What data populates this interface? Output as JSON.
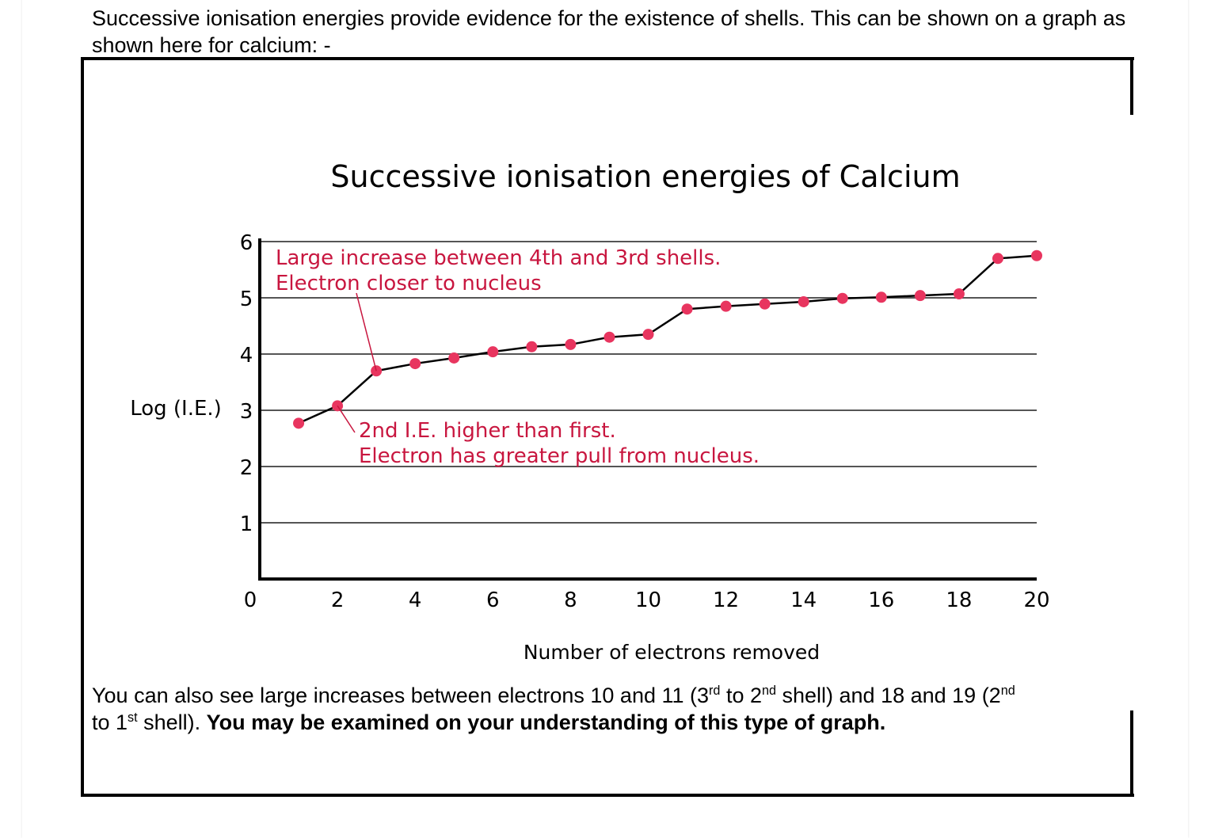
{
  "intro_text": "Successive ionisation energies provide evidence for the existence of shells. This can be shown on a graph as shown here for calcium: -",
  "outro": {
    "part1": "You can also see large increases between electrons 10 and 11 (3",
    "sup1": "rd",
    "part2": " to 2",
    "sup2": "nd",
    "part3": " shell) and 18 and 19 (2",
    "sup3": "nd",
    "part4": " to 1",
    "sup4": "st",
    "part5": " shell).  ",
    "bold": "You may be examined on your understanding of this type of graph."
  },
  "chart_data": {
    "type": "line",
    "title": "Successive ionisation energies of Calcium",
    "xlabel": "Number of electrons removed",
    "ylabel": "Log (I.E.)",
    "xlim": [
      0,
      20
    ],
    "ylim": [
      0,
      6
    ],
    "x_ticks": [
      "0",
      "2",
      "4",
      "6",
      "8",
      "10",
      "12",
      "14",
      "16",
      "18",
      "20"
    ],
    "y_ticks": [
      "1",
      "2",
      "3",
      "4",
      "5",
      "6"
    ],
    "grid": "horizontal",
    "x": [
      1,
      2,
      3,
      4,
      5,
      6,
      7,
      8,
      9,
      10,
      11,
      12,
      13,
      14,
      15,
      16,
      17,
      18,
      19,
      20
    ],
    "values": [
      2.77,
      3.08,
      3.7,
      3.83,
      3.93,
      4.04,
      4.13,
      4.17,
      4.3,
      4.35,
      4.8,
      4.85,
      4.89,
      4.93,
      4.99,
      5.01,
      5.04,
      5.07,
      5.7,
      5.75
    ],
    "line_color": "#000000",
    "marker_color": "#e8355f",
    "annotation_color": "#c8163f",
    "annotations": [
      {
        "lines": [
          "Large increase between 4th and 3rd shells.",
          "Electron closer to nucleus"
        ],
        "points_to_x": 3
      },
      {
        "lines": [
          "2nd I.E. higher than first.",
          "Electron has greater pull from nucleus."
        ],
        "points_to_x": 2
      }
    ]
  }
}
